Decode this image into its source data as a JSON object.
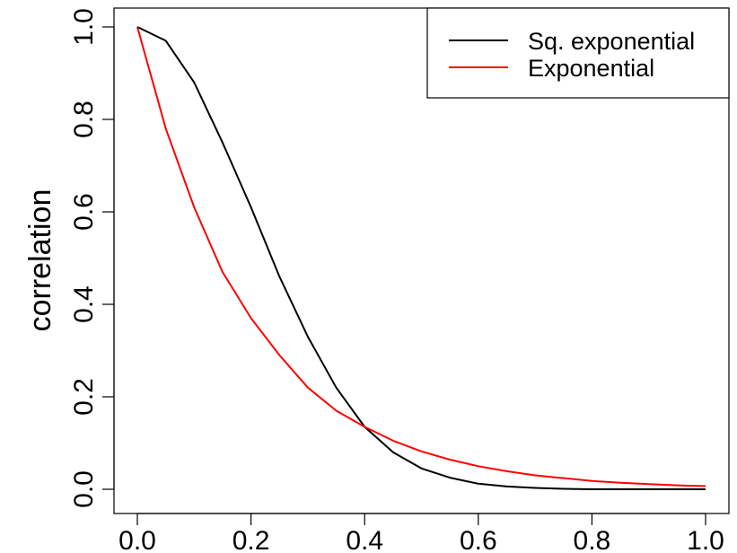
{
  "chart_data": {
    "type": "line",
    "title": "",
    "xlabel": "",
    "ylabel": "correlation",
    "xlim": [
      0.0,
      1.0
    ],
    "ylim": [
      0.0,
      1.0
    ],
    "x_ticks": [
      "0.0",
      "0.2",
      "0.4",
      "0.6",
      "0.8",
      "1.0"
    ],
    "y_ticks": [
      "0.0",
      "0.2",
      "0.4",
      "0.6",
      "0.8",
      "1.0"
    ],
    "grid": false,
    "legend_position": "top-right",
    "x": [
      0.0,
      0.05,
      0.1,
      0.15,
      0.2,
      0.25,
      0.3,
      0.35,
      0.4,
      0.45,
      0.5,
      0.55,
      0.6,
      0.65,
      0.7,
      0.75,
      0.8,
      0.85,
      0.9,
      0.95,
      1.0
    ],
    "series": [
      {
        "name": "Sq. exponential",
        "color": "#000000",
        "values": [
          1.0,
          0.97,
          0.88,
          0.75,
          0.61,
          0.46,
          0.33,
          0.22,
          0.135,
          0.08,
          0.045,
          0.025,
          0.012,
          0.006,
          0.003,
          0.001,
          0.0,
          0.0,
          0.0,
          0.0,
          0.0
        ]
      },
      {
        "name": "Exponential",
        "color": "#ff0000",
        "values": [
          1.0,
          0.78,
          0.61,
          0.47,
          0.37,
          0.29,
          0.22,
          0.17,
          0.135,
          0.105,
          0.082,
          0.064,
          0.05,
          0.039,
          0.03,
          0.024,
          0.018,
          0.014,
          0.011,
          0.0085,
          0.0067
        ]
      }
    ]
  }
}
